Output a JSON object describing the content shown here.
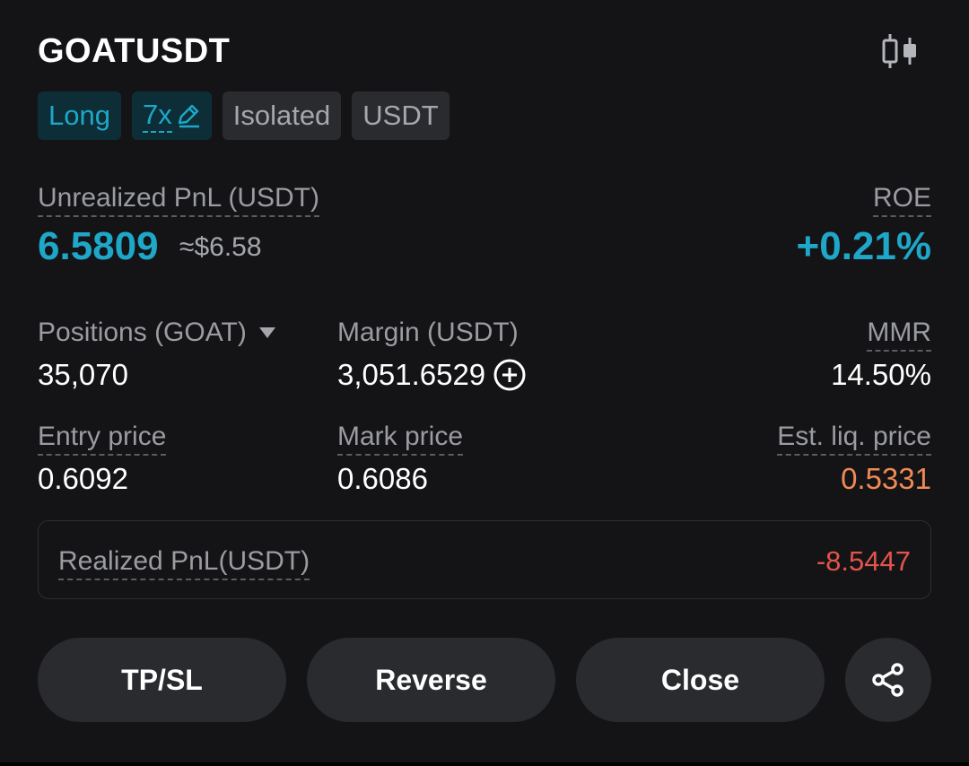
{
  "position": {
    "symbol": "GOATUSDT",
    "tags": {
      "side": "Long",
      "leverage": "7x",
      "margin_mode": "Isolated",
      "settle": "USDT"
    },
    "unrealized": {
      "label": "Unrealized PnL (USDT)",
      "value": "6.5809",
      "approx": "≈$6.58"
    },
    "roe": {
      "label": "ROE",
      "value": "+0.21%"
    },
    "positions": {
      "label": "Positions (GOAT)",
      "value": "35,070"
    },
    "margin": {
      "label": "Margin (USDT)",
      "value": "3,051.6529"
    },
    "mmr": {
      "label": "MMR",
      "value": "14.50%"
    },
    "entry_price": {
      "label": "Entry price",
      "value": "0.6092"
    },
    "mark_price": {
      "label": "Mark price",
      "value": "0.6086"
    },
    "liq_price": {
      "label": "Est. liq. price",
      "value": "0.5331"
    },
    "realized": {
      "label": "Realized PnL(USDT)",
      "value": "-8.5447"
    }
  },
  "actions": {
    "tpsl": "TP/SL",
    "reverse": "Reverse",
    "close": "Close"
  },
  "icons": {
    "chart": "candlestick-chart-icon",
    "edit": "edit-pencil-icon",
    "dropdown": "caret-down-icon",
    "add": "plus-circle-icon",
    "share": "share-icon"
  },
  "colors": {
    "accent": "#1ea7c8",
    "warning": "#f08a55",
    "negative": "#e2544c",
    "background": "#141416"
  }
}
